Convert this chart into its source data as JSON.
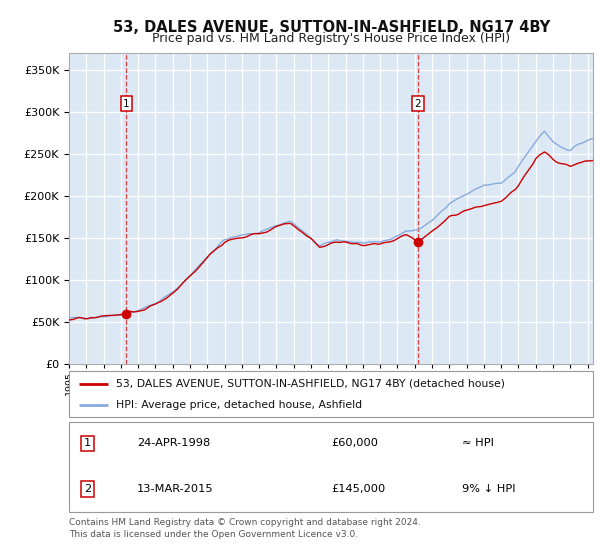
{
  "title": "53, DALES AVENUE, SUTTON-IN-ASHFIELD, NG17 4BY",
  "subtitle": "Price paid vs. HM Land Registry's House Price Index (HPI)",
  "legend_line1": "53, DALES AVENUE, SUTTON-IN-ASHFIELD, NG17 4BY (detached house)",
  "legend_line2": "HPI: Average price, detached house, Ashfield",
  "annotation1_date": "24-APR-1998",
  "annotation1_price": "£60,000",
  "annotation1_hpi": "≈ HPI",
  "annotation2_date": "13-MAR-2015",
  "annotation2_price": "£145,000",
  "annotation2_hpi": "9% ↓ HPI",
  "footer": "Contains HM Land Registry data © Crown copyright and database right 2024.\nThis data is licensed under the Open Government Licence v3.0.",
  "price_paid_color": "#cc0000",
  "hpi_color": "#88aadd",
  "sale1_date_num": 1998.31,
  "sale1_price": 60000,
  "sale2_date_num": 2015.19,
  "sale2_price": 145000,
  "vline1_date_num": 1998.31,
  "vline2_date_num": 2015.19,
  "ylim": [
    0,
    370000
  ],
  "xlim_start": 1995.0,
  "xlim_end": 2025.3,
  "plot_bg_color": "#dde8f5",
  "fig_bg_color": "#ffffff",
  "grid_color": "#ffffff",
  "title_fontsize": 10.5,
  "subtitle_fontsize": 9
}
